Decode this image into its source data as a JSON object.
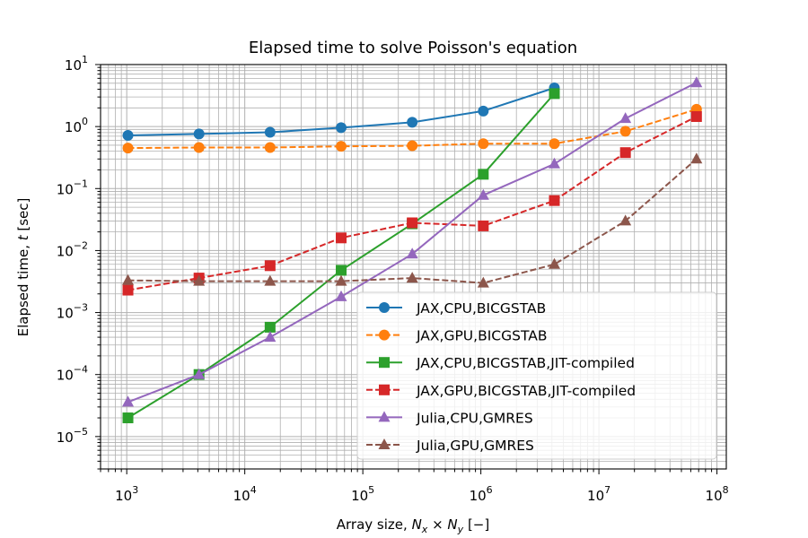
{
  "chart_data": {
    "type": "line",
    "title": "Elapsed time to solve Poisson's equation",
    "xlabel": "Array size, N_x × N_y [−]",
    "ylabel": "Elapsed time, t [sec]",
    "xscale": "log",
    "yscale": "log",
    "xlim": [
      600,
      120000000
    ],
    "ylim": [
      3e-06,
      10
    ],
    "grid": "major-and-minor",
    "legend_position": "lower-right",
    "x_ticks": [
      {
        "value": 1000,
        "base": "10",
        "exp": "3"
      },
      {
        "value": 10000,
        "base": "10",
        "exp": "4"
      },
      {
        "value": 100000,
        "base": "10",
        "exp": "5"
      },
      {
        "value": 1000000,
        "base": "10",
        "exp": "6"
      },
      {
        "value": 10000000,
        "base": "10",
        "exp": "7"
      },
      {
        "value": 100000000,
        "base": "10",
        "exp": "8"
      }
    ],
    "y_ticks": [
      {
        "value": 1e-05,
        "base": "10",
        "exp": "−5"
      },
      {
        "value": 0.0001,
        "base": "10",
        "exp": "−4"
      },
      {
        "value": 0.001,
        "base": "10",
        "exp": "−3"
      },
      {
        "value": 0.01,
        "base": "10",
        "exp": "−2"
      },
      {
        "value": 0.1,
        "base": "10",
        "exp": "−1"
      },
      {
        "value": 1,
        "base": "10",
        "exp": "0"
      },
      {
        "value": 10,
        "base": "10",
        "exp": "1"
      }
    ],
    "series": [
      {
        "name": "JAX,CPU,BICGSTAB",
        "color": "#1f77b4",
        "marker": "circle",
        "linestyle": "solid",
        "x": [
          1024,
          4096,
          16384,
          65536,
          262144,
          1048576,
          4194304
        ],
        "y": [
          0.72,
          0.76,
          0.81,
          0.96,
          1.17,
          1.78,
          4.2
        ]
      },
      {
        "name": "JAX,GPU,BICGSTAB",
        "color": "#ff7f0e",
        "marker": "circle",
        "linestyle": "dashed",
        "x": [
          1024,
          4096,
          16384,
          65536,
          262144,
          1048576,
          4194304,
          16777216,
          67108864
        ],
        "y": [
          0.45,
          0.46,
          0.46,
          0.48,
          0.49,
          0.53,
          0.53,
          0.84,
          1.9
        ]
      },
      {
        "name": "JAX,CPU,BICGSTAB,JIT-compiled",
        "color": "#2ca02c",
        "marker": "square",
        "linestyle": "solid",
        "x": [
          1024,
          4096,
          16384,
          65536,
          262144,
          1048576,
          4194304
        ],
        "y": [
          2e-05,
          0.0001,
          0.00058,
          0.0048,
          0.027,
          0.17,
          3.4
        ]
      },
      {
        "name": "JAX,GPU,BICGSTAB,JIT-compiled",
        "color": "#d62728",
        "marker": "square",
        "linestyle": "dashed",
        "x": [
          1024,
          4096,
          16384,
          65536,
          262144,
          1048576,
          4194304,
          16777216,
          67108864
        ],
        "y": [
          0.0023,
          0.0036,
          0.0057,
          0.016,
          0.028,
          0.025,
          0.064,
          0.38,
          1.45
        ]
      },
      {
        "name": "Julia,CPU,GMRES",
        "color": "#9467bd",
        "marker": "triangle",
        "linestyle": "solid",
        "x": [
          1024,
          4096,
          16384,
          65536,
          262144,
          1048576,
          4194304,
          16777216,
          67108864
        ],
        "y": [
          3.6e-05,
          0.0001,
          0.0004,
          0.0018,
          0.0088,
          0.078,
          0.25,
          1.35,
          5.1
        ]
      },
      {
        "name": "Julia,GPU,GMRES",
        "color": "#8c564b",
        "marker": "triangle",
        "linestyle": "dashed",
        "x": [
          1024,
          4096,
          16384,
          65536,
          262144,
          1048576,
          4194304,
          16777216,
          67108864
        ],
        "y": [
          0.0033,
          0.0032,
          0.0032,
          0.0032,
          0.0036,
          0.003,
          0.006,
          0.03,
          0.3
        ]
      }
    ]
  }
}
